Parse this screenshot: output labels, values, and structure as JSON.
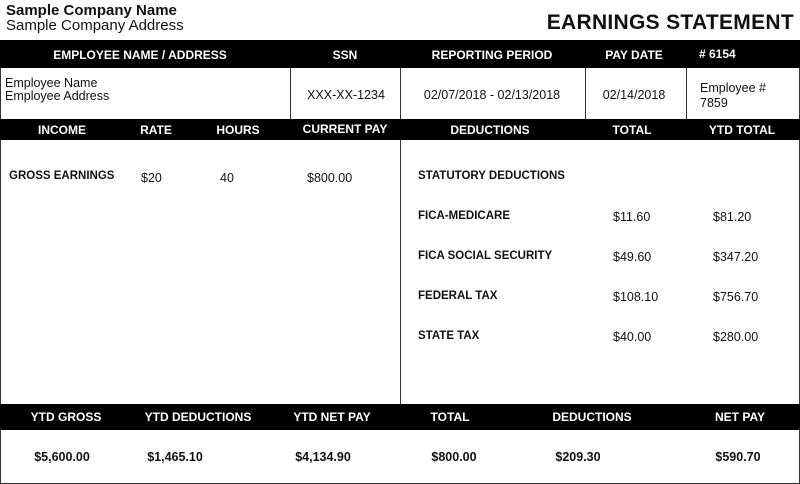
{
  "company": {
    "name": "Sample Company Name",
    "address": "Sample Company Address"
  },
  "title": "EARNINGS STATEMENT",
  "info_headers": {
    "employee": "EMPLOYEE NAME / ADDRESS",
    "ssn": "SSN",
    "period": "REPORTING PERIOD",
    "pay_date": "PAY DATE",
    "check_no": "# 6154"
  },
  "info": {
    "employee_name": "Employee Name",
    "employee_address": "Employee Address",
    "ssn": "XXX-XX-1234",
    "period": "02/07/2018 - 02/13/2018",
    "pay_date": "02/14/2018",
    "employee_no_label": "Employee #",
    "employee_no": "7859"
  },
  "detail_headers": {
    "income": "INCOME",
    "rate": "RATE",
    "hours": "HOURS",
    "current_pay": "CURRENT PAY",
    "deductions": "DEDUCTIONS",
    "total": "TOTAL",
    "ytd_total": "YTD TOTAL"
  },
  "income": {
    "label": "GROSS EARNINGS",
    "rate": "$20",
    "hours": "40",
    "current_pay": "$800.00"
  },
  "deductions": {
    "section": "STATUTORY DEDUCTIONS",
    "items": [
      {
        "label": "FICA-MEDICARE",
        "total": "$11.60",
        "ytd": "$81.20"
      },
      {
        "label": "FICA SOCIAL SECURITY",
        "total": "$49.60",
        "ytd": "$347.20"
      },
      {
        "label": "FEDERAL TAX",
        "total": "$108.10",
        "ytd": "$756.70"
      },
      {
        "label": "STATE TAX",
        "total": "$40.00",
        "ytd": "$280.00"
      }
    ]
  },
  "summary_headers": [
    "YTD GROSS",
    "YTD DEDUCTIONS",
    "YTD NET PAY",
    "TOTAL",
    "DEDUCTIONS",
    "NET PAY"
  ],
  "summary_values": [
    "$5,600.00",
    "$1,465.10",
    "$4,134.90",
    "$800.00",
    "$209.30",
    "$590.70"
  ]
}
